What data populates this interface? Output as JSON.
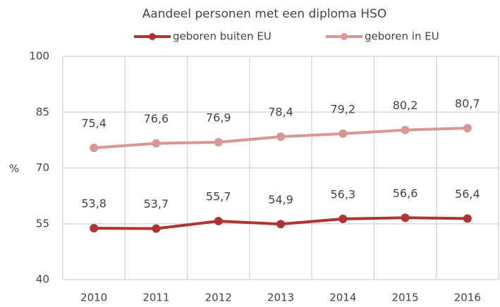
{
  "chart_data": {
    "type": "line",
    "title": "Aandeel  personen met een diploma HSO",
    "y_label": "%",
    "categories": [
      "2010",
      "2011",
      "2012",
      "2013",
      "2014",
      "2015",
      "2016"
    ],
    "series": [
      {
        "name": "geboren buiten EU",
        "color": "#ae3434",
        "values": [
          53.8,
          53.7,
          55.7,
          54.9,
          56.3,
          56.6,
          56.4
        ],
        "value_labels": [
          "53,8",
          "53,7",
          "55,7",
          "54,9",
          "56,3",
          "56,6",
          "56,4"
        ]
      },
      {
        "name": "geboren in EU",
        "color": "#d99694",
        "values": [
          75.4,
          76.6,
          76.9,
          78.4,
          79.2,
          80.2,
          80.7
        ],
        "value_labels": [
          "75,4",
          "76,6",
          "76,9",
          "78,4",
          "79,2",
          "80,2",
          "80,7"
        ]
      }
    ],
    "ylim": [
      40,
      100
    ],
    "yticks": [
      40,
      55,
      70,
      85,
      100
    ],
    "grid": true,
    "legend": "top"
  }
}
